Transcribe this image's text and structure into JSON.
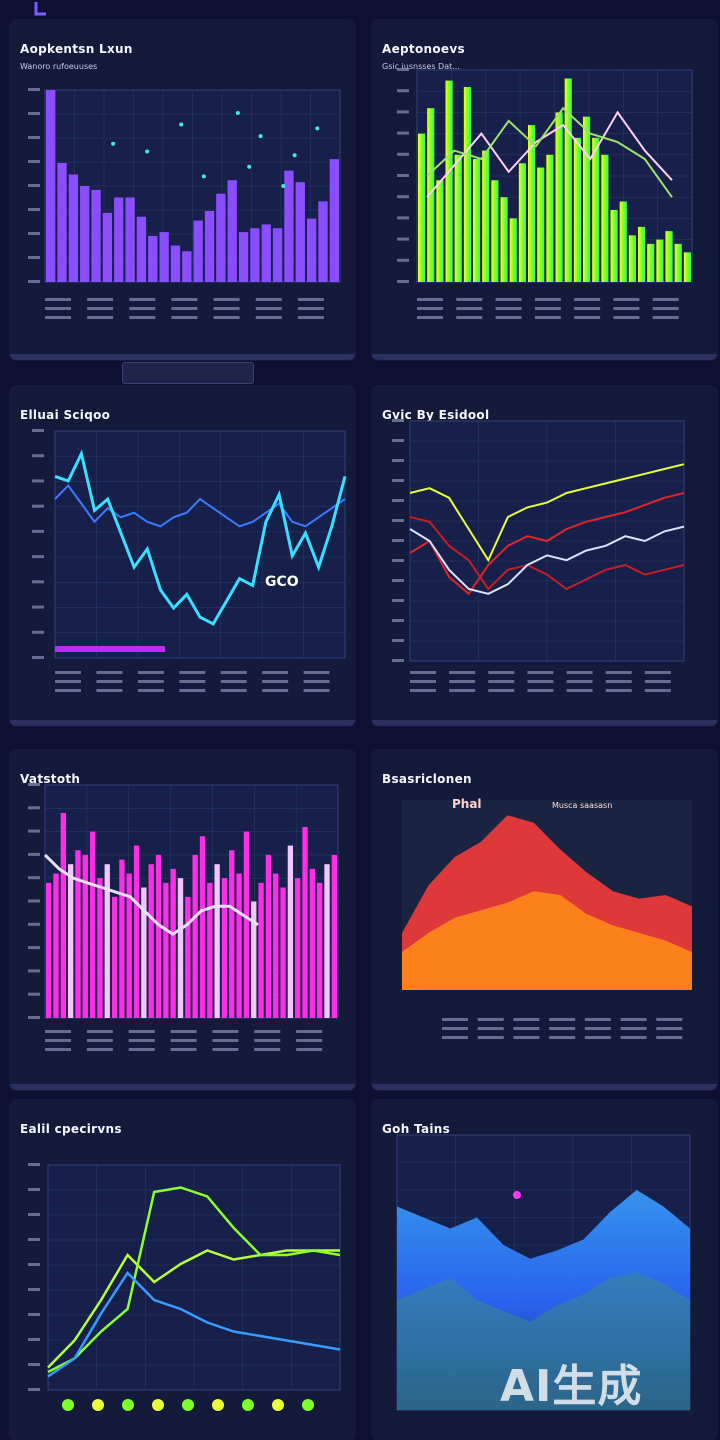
{
  "watermark": "AI生成",
  "colors": {
    "background": "#0d1030",
    "panel": "#141a3a",
    "grid": "#2b3766",
    "purple": "#8a4dff",
    "cyan": "#38e0ff",
    "magenta": "#ff2ee6",
    "lime": "#7fff2a",
    "yellow": "#f2ff1a",
    "red": "#e0242a",
    "orange": "#ff8a1a",
    "blue": "#2a7bff"
  },
  "panels": [
    {
      "title": "Aopkentsn Lxun",
      "subtitle": "Wanoro rufoeuuses",
      "chart_data": {
        "type": "bar",
        "title": "Aopkentsn Lxun",
        "ylim": [
          0,
          100
        ],
        "values": [
          100,
          62,
          56,
          50,
          48,
          36,
          44,
          44,
          34,
          24,
          26,
          19,
          16,
          32,
          37,
          46,
          53,
          26,
          28,
          30,
          28,
          58,
          52,
          33,
          42,
          64
        ],
        "scatter": [
          {
            "x": 6,
            "y": 72
          },
          {
            "x": 9,
            "y": 68
          },
          {
            "x": 12,
            "y": 82
          },
          {
            "x": 14,
            "y": 55
          },
          {
            "x": 17,
            "y": 88
          },
          {
            "x": 18,
            "y": 60
          },
          {
            "x": 19,
            "y": 76
          },
          {
            "x": 21,
            "y": 50
          },
          {
            "x": 22,
            "y": 66
          },
          {
            "x": 24,
            "y": 80
          }
        ]
      }
    },
    {
      "title": "Aeptonoevs",
      "subtitle": "Gsic  iusnsses Dat...",
      "chart_data": {
        "type": "bar",
        "title": "Aeptonoevs",
        "ylim": [
          0,
          100
        ],
        "values": [
          70,
          82,
          48,
          95,
          60,
          92,
          58,
          62,
          48,
          40,
          30,
          56,
          74,
          54,
          60,
          80,
          96,
          68,
          78,
          68,
          60,
          34,
          38,
          22,
          26,
          18,
          20,
          24,
          18,
          14
        ],
        "lines": [
          {
            "name": "pink",
            "values": [
              40,
              55,
              70,
              52,
              66,
              74,
              58,
              80,
              62,
              48
            ]
          },
          {
            "name": "green",
            "values": [
              50,
              62,
              58,
              76,
              64,
              82,
              70,
              66,
              58,
              40
            ]
          }
        ]
      }
    },
    {
      "title": "Elluai Sciqoo",
      "subtitle": "",
      "chart_data": {
        "type": "line",
        "title": "Elluai Sciqoo",
        "ylim": [
          0,
          100
        ],
        "annotation": "GCO",
        "series": [
          {
            "name": "cyan",
            "values": [
              80,
              78,
              90,
              65,
              70,
              55,
              40,
              48,
              30,
              22,
              28,
              18,
              15,
              25,
              35,
              32,
              60,
              72,
              45,
              55,
              40,
              58,
              80
            ]
          },
          {
            "name": "blue",
            "values": [
              70,
              76,
              68,
              60,
              66,
              62,
              64,
              60,
              58,
              62,
              64,
              70,
              66,
              62,
              58,
              60,
              64,
              68,
              60,
              58,
              62,
              66,
              70
            ]
          }
        ]
      }
    },
    {
      "title": "Gvic  By Esidool",
      "subtitle": "",
      "chart_data": {
        "type": "line",
        "title": "Gvic  By Esidool",
        "ylim": [
          0,
          100
        ],
        "series": [
          {
            "name": "red",
            "values": [
              45,
              50,
              35,
              28,
              40,
              48,
              52,
              50,
              55,
              58,
              60,
              62,
              65,
              68,
              70
            ]
          },
          {
            "name": "red-2",
            "values": [
              60,
              58,
              48,
              42,
              30,
              38,
              40,
              36,
              30,
              34,
              38,
              40,
              36,
              38,
              40
            ]
          },
          {
            "name": "white",
            "values": [
              55,
              50,
              38,
              30,
              28,
              32,
              40,
              44,
              42,
              46,
              48,
              52,
              50,
              54,
              56
            ]
          },
          {
            "name": "yellow",
            "values": [
              70,
              72,
              68,
              55,
              42,
              60,
              64,
              66,
              70,
              72,
              74,
              76,
              78,
              80,
              82
            ]
          }
        ]
      }
    },
    {
      "title": "Vatstoth",
      "subtitle": "",
      "chart_data": {
        "type": "bar",
        "title": "Vatstoth",
        "ylim": [
          0,
          100
        ],
        "values": [
          58,
          62,
          88,
          66,
          72,
          70,
          80,
          60,
          66,
          52,
          68,
          62,
          74,
          56,
          66,
          70,
          58,
          64,
          60,
          52,
          70,
          78,
          58,
          66,
          60,
          72,
          62,
          80,
          50,
          58,
          70,
          62,
          56,
          74,
          60,
          82,
          64,
          58,
          66,
          70
        ],
        "line": [
          70,
          64,
          60,
          58,
          56,
          54,
          52,
          46,
          40,
          36,
          40,
          46,
          48,
          48,
          44,
          40
        ]
      }
    },
    {
      "title": "Bsasriclonen",
      "subtitle": "Phal",
      "chart_data": {
        "type": "area",
        "title": "Bsasriclonen",
        "ylim": [
          0,
          100
        ],
        "legend": "Musca  saasasn",
        "series": [
          {
            "name": "red",
            "values": [
              30,
              55,
              70,
              78,
              92,
              88,
              74,
              62,
              52,
              48,
              50,
              44
            ]
          },
          {
            "name": "orange",
            "values": [
              20,
              30,
              38,
              42,
              46,
              52,
              50,
              40,
              34,
              30,
              26,
              20
            ]
          }
        ]
      }
    },
    {
      "title": "Ealil cpecirvns",
      "subtitle": "",
      "chart_data": {
        "type": "line",
        "title": "Ealil cpecirvns",
        "ylim": [
          0,
          100
        ],
        "series": [
          {
            "name": "lime",
            "values": [
              10,
              22,
              40,
              60,
              48,
              56,
              62,
              58,
              60,
              62,
              62,
              62
            ]
          },
          {
            "name": "lime-2",
            "values": [
              8,
              14,
              26,
              36,
              88,
              90,
              86,
              72,
              60,
              60,
              62,
              60
            ]
          },
          {
            "name": "blue",
            "values": [
              6,
              14,
              34,
              52,
              40,
              36,
              30,
              26,
              24,
              22,
              20,
              18
            ]
          }
        ]
      }
    },
    {
      "title": "Goh Tains",
      "subtitle": "",
      "chart_data": {
        "type": "area",
        "title": "Goh Tains",
        "ylim": [
          0,
          100
        ],
        "series": [
          {
            "name": "blue",
            "values": [
              74,
              70,
              66,
              70,
              60,
              55,
              58,
              62,
              72,
              80,
              74,
              66
            ]
          },
          {
            "name": "teal",
            "values": [
              40,
              44,
              48,
              40,
              36,
              32,
              38,
              42,
              48,
              50,
              46,
              40
            ]
          }
        ]
      }
    }
  ]
}
